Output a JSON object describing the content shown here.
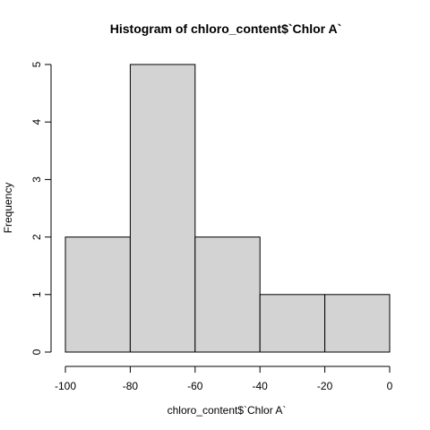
{
  "chart_data": {
    "type": "bar",
    "subtype": "histogram",
    "title": "Histogram of chloro_content$`Chlor A`",
    "xlabel": "chloro_content$`Chlor A`",
    "ylabel": "Frequency",
    "bins": [
      {
        "start": -100,
        "end": -80,
        "count": 2
      },
      {
        "start": -80,
        "end": -60,
        "count": 5
      },
      {
        "start": -60,
        "end": -40,
        "count": 2
      },
      {
        "start": -40,
        "end": -20,
        "count": 1
      },
      {
        "start": -20,
        "end": 0,
        "count": 1
      }
    ],
    "xlim": [
      -100,
      0
    ],
    "ylim": [
      0,
      5
    ],
    "xticks": [
      -100,
      -80,
      -60,
      -40,
      -20,
      0
    ],
    "yticks": [
      0,
      1,
      2,
      3,
      4,
      5
    ],
    "bar_color": "#d3d3d3",
    "edge_color": "#000000",
    "grid": false,
    "legend": "none"
  }
}
